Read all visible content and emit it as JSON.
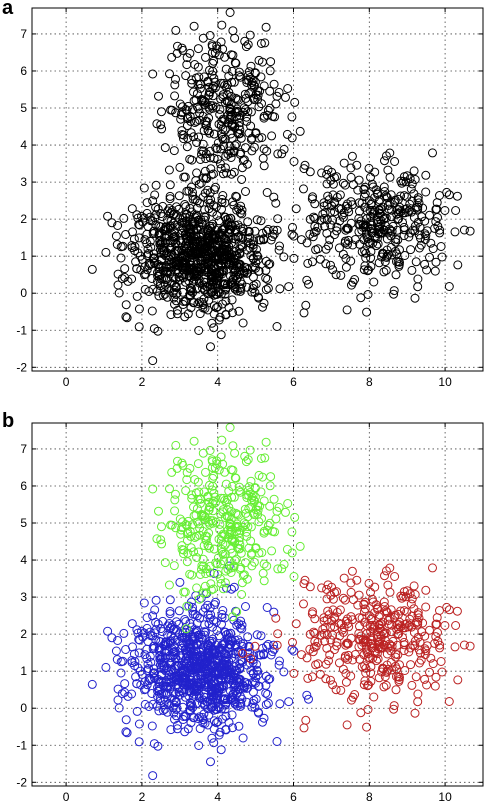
{
  "panels": [
    {
      "label": "a"
    },
    {
      "label": "b"
    }
  ],
  "chart_data": [
    {
      "type": "scatter",
      "panel": "a",
      "title": "",
      "xlabel": "",
      "ylabel": "",
      "xlim": [
        -0.9,
        11.0
      ],
      "ylim": [
        -2.1,
        7.7
      ],
      "xticks": [
        0,
        2,
        4,
        6,
        8,
        10
      ],
      "yticks": [
        -2,
        -1,
        0,
        1,
        2,
        3,
        4,
        5,
        6,
        7
      ],
      "grid": true,
      "marker": "open-circle",
      "series": [
        {
          "color": "#000000",
          "clusters": [
            {
              "center": [
                3.5,
                1.0
              ],
              "spread": [
                0.9,
                0.8
              ],
              "count": 900
            },
            {
              "center": [
                4.2,
                5.0
              ],
              "spread": [
                0.8,
                0.9
              ],
              "count": 350
            },
            {
              "center": [
                8.2,
                1.9
              ],
              "spread": [
                1.0,
                0.8
              ],
              "count": 380
            }
          ]
        }
      ]
    },
    {
      "type": "scatter",
      "panel": "b",
      "title": "",
      "xlabel": "",
      "ylabel": "",
      "xlim": [
        -0.9,
        11.0
      ],
      "ylim": [
        -2.1,
        7.7
      ],
      "xticks": [
        0,
        2,
        4,
        6,
        8,
        10
      ],
      "yticks": [
        -2,
        -1,
        0,
        1,
        2,
        3,
        4,
        5,
        6,
        7
      ],
      "grid": true,
      "marker": "open-circle",
      "series": [
        {
          "color": "#2222cc",
          "clusters": [
            {
              "center": [
                3.5,
                1.0
              ],
              "spread": [
                0.9,
                0.8
              ],
              "count": 900
            }
          ]
        },
        {
          "color": "#66ee33",
          "clusters": [
            {
              "center": [
                4.2,
                5.0
              ],
              "spread": [
                0.8,
                0.9
              ],
              "count": 350
            }
          ]
        },
        {
          "color": "#bb2222",
          "clusters": [
            {
              "center": [
                8.2,
                1.9
              ],
              "spread": [
                1.0,
                0.8
              ],
              "count": 380
            }
          ]
        }
      ]
    }
  ]
}
